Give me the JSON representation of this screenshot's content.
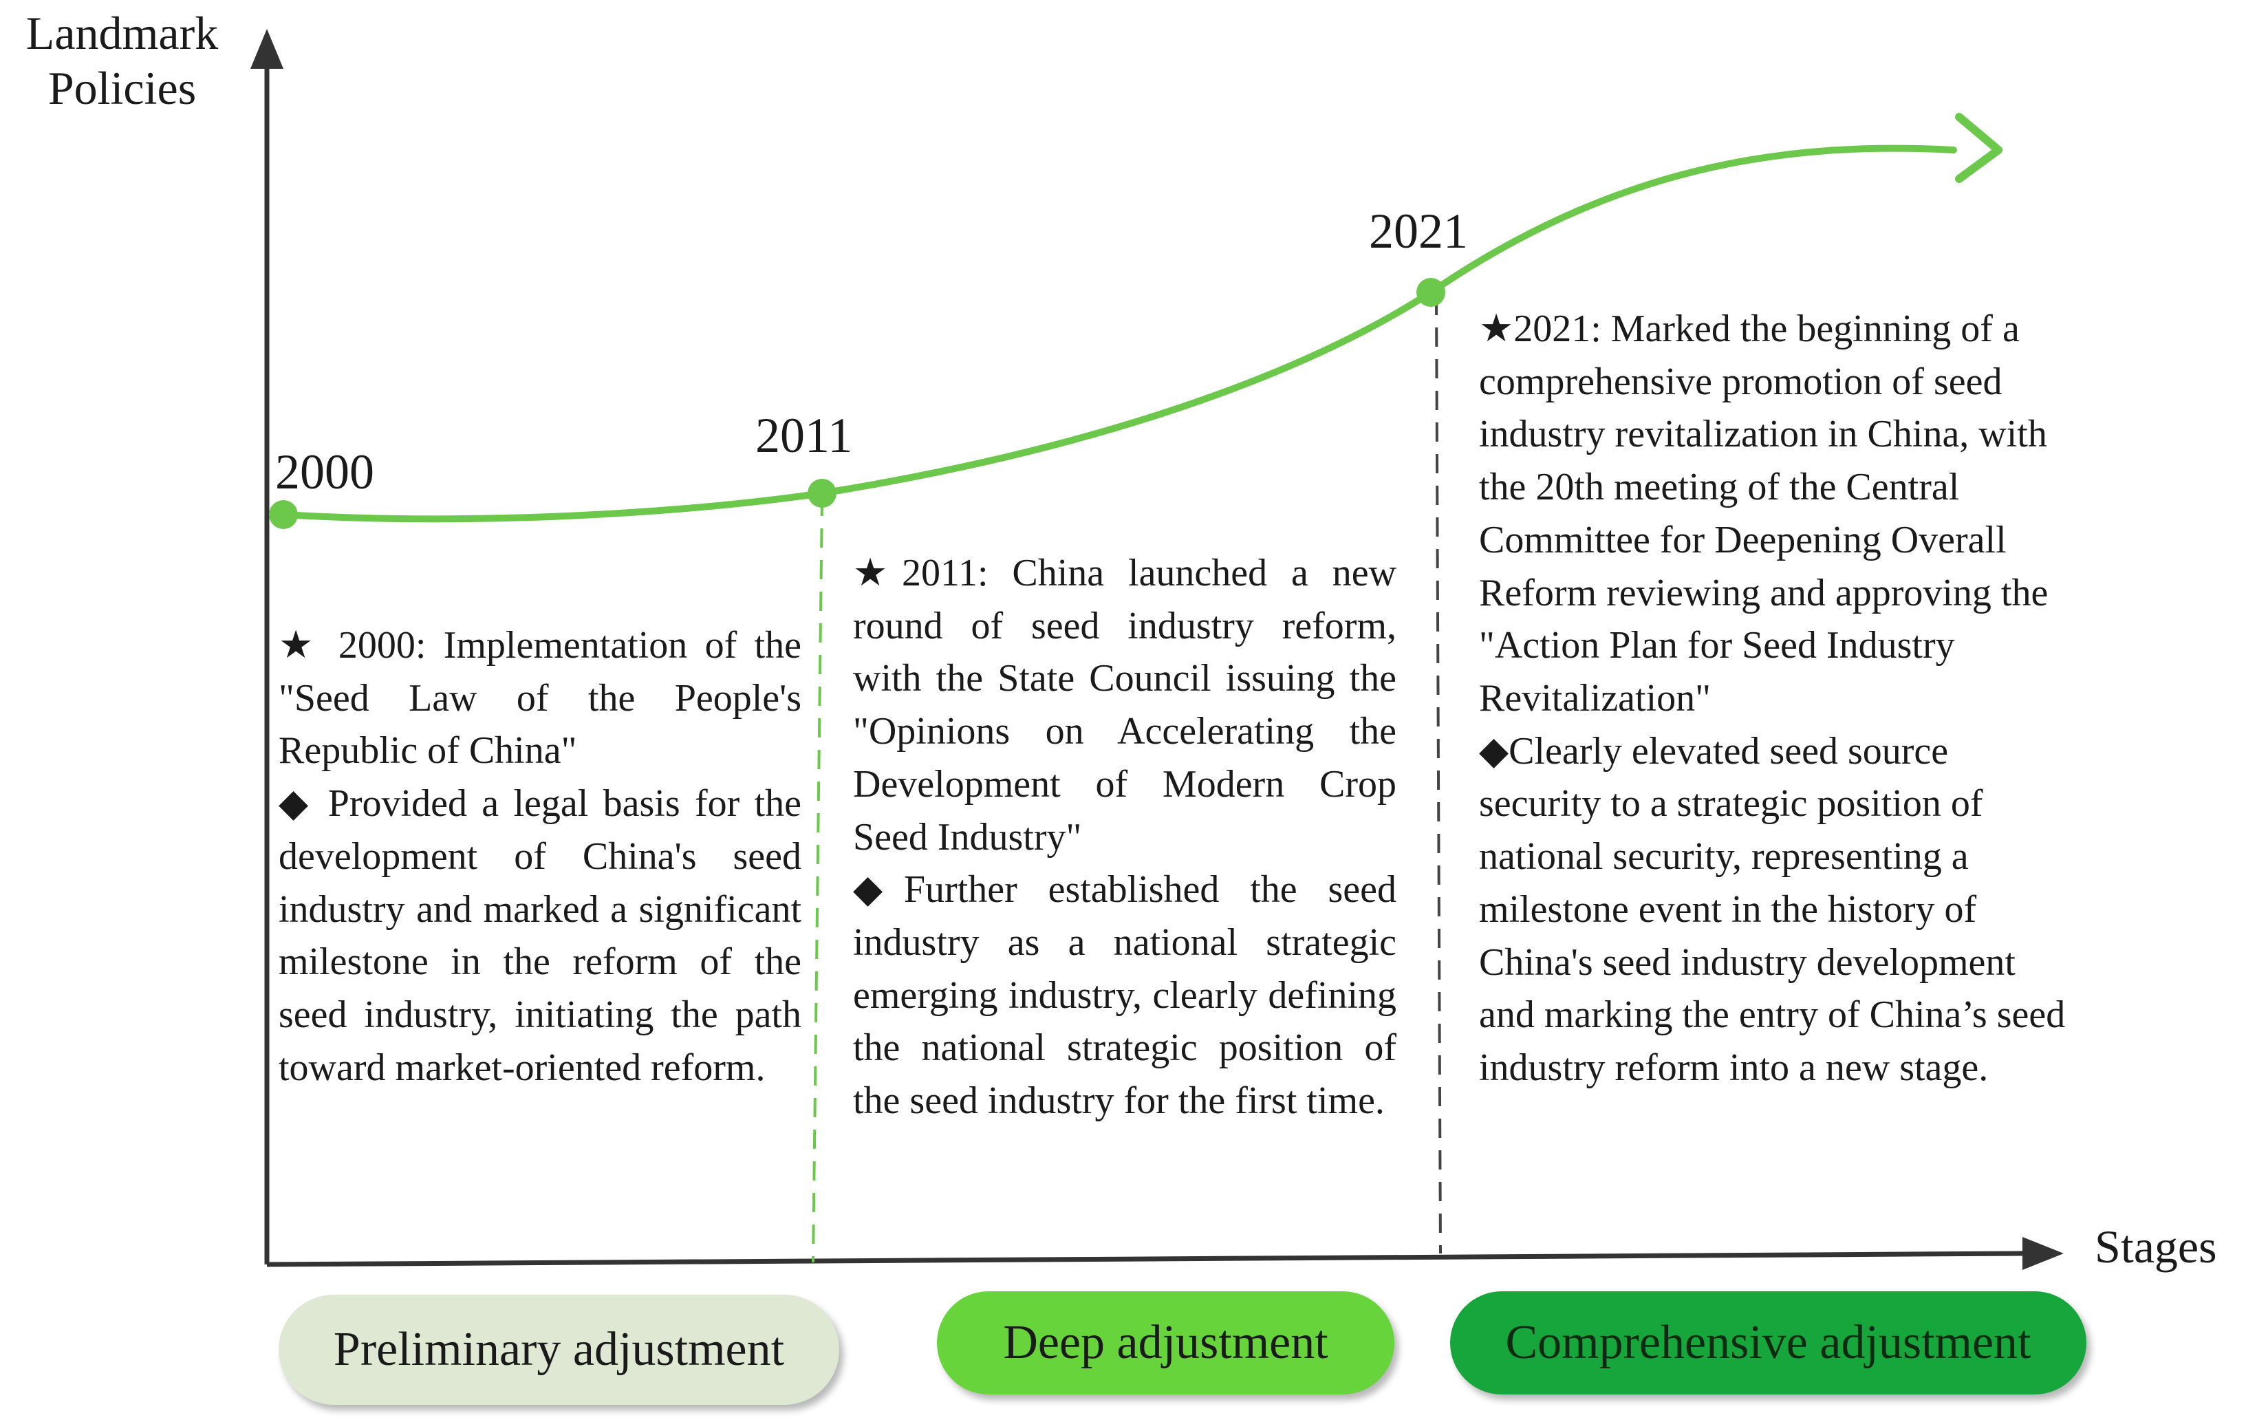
{
  "axes": {
    "y_label_line1": "Landmark",
    "y_label_line2": "Policies",
    "x_label": "Stages"
  },
  "milestones": [
    {
      "year": "2000",
      "headline": "★ 2000: Implementation of the \"Seed Law of the People's Republic of China\"",
      "impact": "◆ Provided a legal basis for the development of China's seed industry and marked a significant milestone in the reform of the seed industry, initiating the path toward market-oriented reform."
    },
    {
      "year": "2011",
      "headline": "★2011: China launched a new round of seed industry reform, with the State Council issuing the \"Opinions on Accelerating the Development of Modern Crop Seed Industry\"",
      "impact": "◆Further established the seed industry as a national strategic emerging industry, clearly defining the national strategic position of the seed industry for the first time."
    },
    {
      "year": "2021",
      "headline": "★2021: Marked the beginning of a comprehensive promotion of seed industry revitalization in China, with the 20th meeting of the Central Committee for Deepening Overall Reform reviewing and approving the \"Action Plan for Seed Industry Revitalization\"",
      "impact": "◆Clearly elevated seed source security to a strategic position of national security, representing a milestone event in the history of China's seed industry development and marking the entry of China’s seed industry reform into a new stage."
    }
  ],
  "stages": [
    {
      "label": "Preliminary adjustment",
      "color": "#dfe8d2"
    },
    {
      "label": "Deep adjustment",
      "color": "#66d43a"
    },
    {
      "label": "Comprehensive adjustment",
      "color": "#17a63c"
    }
  ],
  "colors": {
    "curve": "#6cc84b",
    "axis": "#333333",
    "divider_1": "#6cc84b",
    "divider_2": "#444444"
  }
}
